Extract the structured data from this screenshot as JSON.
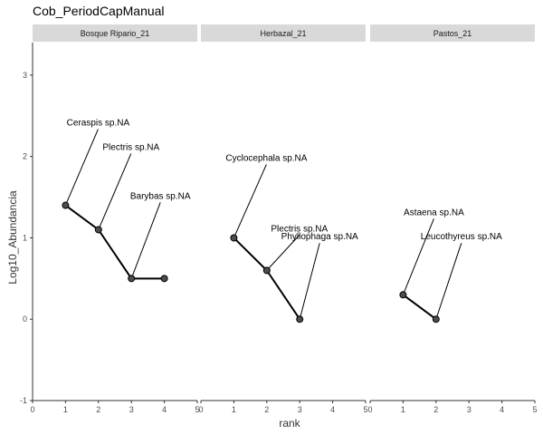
{
  "chart_data": {
    "type": "line",
    "title": "Cob_PeriodCapManual",
    "xlabel": "rank",
    "ylabel": "Log10_Abundancia",
    "xlim": [
      0,
      5
    ],
    "ylim": [
      -1,
      3.4
    ],
    "x_ticks": [
      "0",
      "1",
      "2",
      "3",
      "4",
      "5"
    ],
    "y_ticks": [
      "-1",
      "0",
      "1",
      "2",
      "3"
    ],
    "grid": false,
    "panels": [
      {
        "name": "Bosque Ripario_21",
        "points": [
          {
            "x": 1,
            "y": 1.4,
            "label": "Ceraspis sp.NA"
          },
          {
            "x": 2,
            "y": 1.1,
            "label": "Plectris sp.NA"
          },
          {
            "x": 3,
            "y": 0.5,
            "label": "Barybas sp.NA"
          },
          {
            "x": 4,
            "y": 0.5,
            "label": ""
          }
        ]
      },
      {
        "name": "Herbazal_21",
        "points": [
          {
            "x": 1,
            "y": 1.0,
            "label": "Cyclocephala sp.NA"
          },
          {
            "x": 2,
            "y": 0.6,
            "label": "Plectris sp.NA"
          },
          {
            "x": 3,
            "y": 0.0,
            "label": "Phyllophaga sp.NA"
          }
        ]
      },
      {
        "name": "Pastos_21",
        "points": [
          {
            "x": 1,
            "y": 0.3,
            "label": "Astaena sp.NA"
          },
          {
            "x": 2,
            "y": 0.0,
            "label": "Leucothyreus sp.NA"
          }
        ]
      }
    ]
  }
}
